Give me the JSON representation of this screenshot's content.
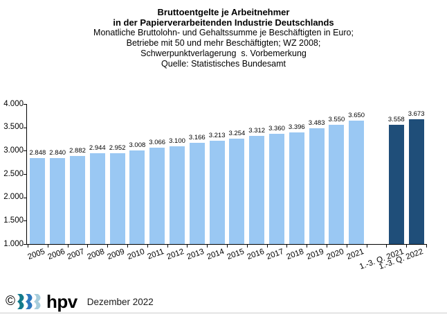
{
  "title": {
    "line1": "Bruttoentgelte je Arbeitnehmer",
    "line2": "in der Papierverarbeitenden Industrie Deutschlands",
    "line3": "Monatliche Bruttolohn- und Gehaltssumme je Beschäftigten in Euro;",
    "line4": "Betriebe mit 50 und mehr Beschäftigten; WZ 2008;",
    "line5": "Schwerpunktverlagerung  s. Vorbemerkung",
    "line6": "Quelle: Statistisches Bundesamt"
  },
  "chart_data": {
    "type": "bar",
    "title": "Bruttoentgelte je Arbeitnehmer in der Papierverarbeitenden Industrie Deutschlands",
    "xlabel": "",
    "ylabel": "Monatliche Bruttolohn- und Gehaltssumme je Beschäftigten in Euro",
    "categories": [
      "2005",
      "2006",
      "2007",
      "2008",
      "2009",
      "2010",
      "2011",
      "2012",
      "2013",
      "2014",
      "2015",
      "2016",
      "2017",
      "2018",
      "2019",
      "2020",
      "2021",
      "1.-3. Q. 2021",
      "1.-3. Q. 2022"
    ],
    "values": [
      2848,
      2840,
      2882,
      2944,
      2952,
      3008,
      3066,
      3100,
      3166,
      3213,
      3254,
      3312,
      3360,
      3396,
      3483,
      3550,
      3650,
      3558,
      3673
    ],
    "value_labels": [
      "2.848",
      "2.840",
      "2.882",
      "2.944",
      "2.952",
      "3.008",
      "3.066",
      "3.100",
      "3.166",
      "3.213",
      "3.254",
      "3.312",
      "3.360",
      "3.396",
      "3.483",
      "3.550",
      "3.650",
      "3.558",
      "3.673"
    ],
    "groups": [
      "historic",
      "historic",
      "historic",
      "historic",
      "historic",
      "historic",
      "historic",
      "historic",
      "historic",
      "historic",
      "historic",
      "historic",
      "historic",
      "historic",
      "historic",
      "historic",
      "historic",
      "current",
      "current"
    ],
    "colors": {
      "historic": "#9AC8F3",
      "current": "#1F4E79"
    },
    "ylim": [
      1000,
      4000
    ],
    "y_ticks": [
      "4.000",
      "3.500",
      "3.000",
      "2.500",
      "2.000",
      "1.500",
      "1.000"
    ],
    "gap_before_index": 17,
    "grid": false,
    "legend": "none"
  },
  "footer": {
    "copyright_symbol": "©",
    "logo_text": "hpv",
    "date_text": "Dezember 2022",
    "logo_colors": [
      "#137A8C",
      "#2E78BE",
      "#A7CDDC"
    ]
  }
}
